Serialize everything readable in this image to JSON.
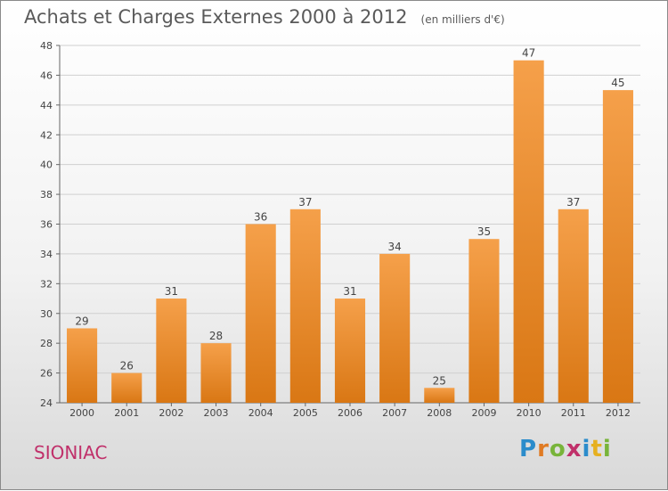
{
  "header": {
    "title": "Achats et Charges Externes 2000 à 2012",
    "subtitle": "(en milliers d'€)"
  },
  "footer": {
    "town": "SIONIAC",
    "logo": "Proxiti"
  },
  "colors": {
    "bar_light": "#f5a04a",
    "bar_dark": "#d97714",
    "grid": "#d0d0d0",
    "town": "#c0306a"
  },
  "chart_data": {
    "type": "bar",
    "categories": [
      "2000",
      "2001",
      "2002",
      "2003",
      "2004",
      "2005",
      "2006",
      "2007",
      "2008",
      "2009",
      "2010",
      "2011",
      "2012"
    ],
    "values": [
      29,
      26,
      31,
      28,
      36,
      37,
      31,
      34,
      25,
      35,
      47,
      37,
      45
    ],
    "title": "Achats et Charges Externes 2000 à 2012",
    "subtitle": "(en milliers d'€)",
    "xlabel": "",
    "ylabel": "",
    "ylim": [
      24,
      48
    ],
    "yticks": [
      24,
      26,
      28,
      30,
      32,
      34,
      36,
      38,
      40,
      42,
      44,
      46,
      48
    ],
    "grid": true,
    "legend": "none"
  }
}
